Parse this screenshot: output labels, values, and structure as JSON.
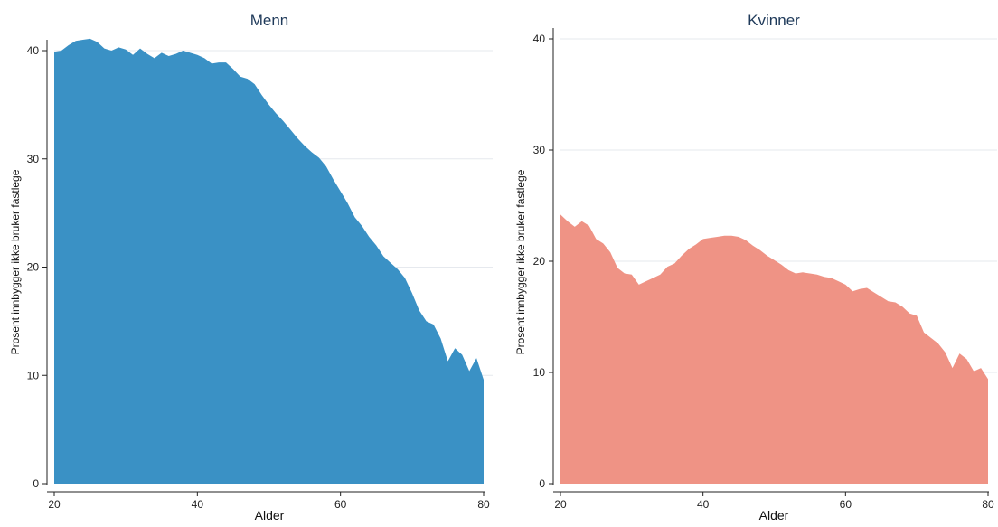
{
  "chart_data": [
    {
      "type": "area",
      "title": "Menn",
      "xlabel": "Alder",
      "ylabel": "Prosent innbygger ikke bruker fastlege",
      "xlim": [
        20,
        80
      ],
      "ylim": [
        0,
        40
      ],
      "xticks": [
        "20",
        "40",
        "60",
        "80"
      ],
      "yticks": [
        "0",
        "10",
        "20",
        "30",
        "40"
      ],
      "color": "#3a91c5",
      "grid": true,
      "x": [
        20,
        21,
        22,
        23,
        24,
        25,
        26,
        27,
        28,
        29,
        30,
        31,
        32,
        33,
        34,
        35,
        36,
        37,
        38,
        39,
        40,
        41,
        42,
        43,
        44,
        45,
        46,
        47,
        48,
        49,
        50,
        51,
        52,
        53,
        54,
        55,
        56,
        57,
        58,
        59,
        60,
        61,
        62,
        63,
        64,
        65,
        66,
        67,
        68,
        69,
        70,
        71,
        72,
        73,
        74,
        75,
        76,
        77,
        78,
        79,
        80
      ],
      "y": [
        39.9,
        40.0,
        40.5,
        40.9,
        41.0,
        41.1,
        40.8,
        40.2,
        40.0,
        40.3,
        40.1,
        39.6,
        40.2,
        39.7,
        39.3,
        39.8,
        39.5,
        39.7,
        40.0,
        39.8,
        39.6,
        39.3,
        38.8,
        38.9,
        38.9,
        38.3,
        37.6,
        37.4,
        36.9,
        35.9,
        35.0,
        34.2,
        33.5,
        32.7,
        31.9,
        31.2,
        30.6,
        30.1,
        29.3,
        28.1,
        27.0,
        25.9,
        24.6,
        23.8,
        22.8,
        22.0,
        21.0,
        20.4,
        19.8,
        19.0,
        17.6,
        16.0,
        15.0,
        14.7,
        13.4,
        11.3,
        12.5,
        11.9,
        10.4,
        11.6,
        9.6
      ]
    },
    {
      "type": "area",
      "title": "Kvinner",
      "xlabel": "Alder",
      "ylabel": "Prosent innbygger ikke bruker fastlege",
      "xlim": [
        20,
        80
      ],
      "ylim": [
        0,
        40
      ],
      "xticks": [
        "20",
        "40",
        "60",
        "80"
      ],
      "yticks": [
        "0",
        "10",
        "20",
        "30",
        "40"
      ],
      "color": "#ef9385",
      "grid": true,
      "x": [
        20,
        21,
        22,
        23,
        24,
        25,
        26,
        27,
        28,
        29,
        30,
        31,
        32,
        33,
        34,
        35,
        36,
        37,
        38,
        39,
        40,
        41,
        42,
        43,
        44,
        45,
        46,
        47,
        48,
        49,
        50,
        51,
        52,
        53,
        54,
        55,
        56,
        57,
        58,
        59,
        60,
        61,
        62,
        63,
        64,
        65,
        66,
        67,
        68,
        69,
        70,
        71,
        72,
        73,
        74,
        75,
        76,
        77,
        78,
        79,
        80
      ],
      "y": [
        24.2,
        23.6,
        23.1,
        23.6,
        23.2,
        22.0,
        21.6,
        20.8,
        19.4,
        18.9,
        18.8,
        17.9,
        18.2,
        18.5,
        18.8,
        19.5,
        19.8,
        20.5,
        21.1,
        21.5,
        22.0,
        22.1,
        22.2,
        22.3,
        22.3,
        22.2,
        21.9,
        21.4,
        21.0,
        20.5,
        20.1,
        19.7,
        19.2,
        18.9,
        19.0,
        18.9,
        18.8,
        18.6,
        18.5,
        18.2,
        17.9,
        17.3,
        17.5,
        17.6,
        17.2,
        16.8,
        16.4,
        16.3,
        15.9,
        15.3,
        15.1,
        13.6,
        13.1,
        12.6,
        11.8,
        10.4,
        11.7,
        11.2,
        10.1,
        10.4,
        9.4
      ]
    }
  ]
}
